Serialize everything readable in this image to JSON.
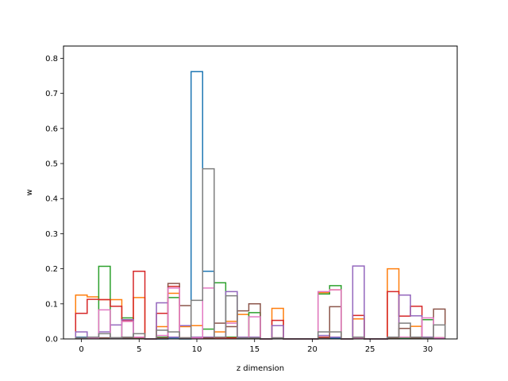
{
  "chart_data": {
    "type": "step-histogram",
    "xlabel": "z dimension",
    "ylabel": "w",
    "xlim": [
      -1.55,
      32.55
    ],
    "ylim": [
      0,
      0.835
    ],
    "xticks": [
      0,
      5,
      10,
      15,
      20,
      25,
      30
    ],
    "yticks": [
      0.0,
      0.1,
      0.2,
      0.3,
      0.4,
      0.5,
      0.6,
      0.7,
      0.8
    ],
    "x": [
      0,
      1,
      2,
      3,
      4,
      5,
      6,
      7,
      8,
      9,
      10,
      11,
      12,
      13,
      14,
      15,
      16,
      17,
      18,
      19,
      20,
      21,
      22,
      23,
      24,
      25,
      26,
      27,
      28,
      29,
      30,
      31
    ],
    "series": [
      {
        "color": "#1f77b4",
        "values": [
          0.005,
          0.003,
          0.003,
          0.003,
          0.002,
          0.004,
          0,
          0,
          0.003,
          0,
          0.762,
          0.193,
          0.005,
          0.005,
          0.003,
          0.003,
          0,
          0.002,
          0,
          0,
          0,
          0.003,
          0.002,
          0,
          0.003,
          0,
          0,
          0.003,
          0.003,
          0.002,
          0.002,
          0.002
        ]
      },
      {
        "color": "#ff7f0e",
        "values": [
          0.125,
          0.12,
          0.112,
          0.112,
          0.05,
          0.118,
          0,
          0.035,
          0.13,
          0.035,
          0.038,
          0.005,
          0.02,
          0.05,
          0.07,
          0.005,
          0,
          0.087,
          0,
          0,
          0,
          0.132,
          0.14,
          0,
          0.057,
          0,
          0,
          0.2,
          0.005,
          0.036,
          0.005,
          0.003
        ]
      },
      {
        "color": "#2ca02c",
        "values": [
          0.003,
          0.003,
          0.207,
          0.003,
          0.06,
          0.002,
          0,
          0.005,
          0.118,
          0.003,
          0.003,
          0.028,
          0.16,
          0.005,
          0.005,
          0.075,
          0,
          0.002,
          0,
          0,
          0,
          0.128,
          0.152,
          0,
          0.003,
          0,
          0,
          0.003,
          0.003,
          0.003,
          0.055,
          0.003
        ]
      },
      {
        "color": "#d62728",
        "values": [
          0.073,
          0.113,
          0.112,
          0.093,
          0.052,
          0.193,
          0,
          0.073,
          0.15,
          0.003,
          0.003,
          0.003,
          0.003,
          0.003,
          0.003,
          0.003,
          0,
          0.053,
          0,
          0,
          0,
          0.005,
          0.005,
          0,
          0.067,
          0,
          0,
          0.135,
          0.065,
          0.093,
          0.003,
          0.003
        ]
      },
      {
        "color": "#9467bd",
        "values": [
          0.02,
          0.005,
          0.02,
          0.04,
          0.055,
          0.005,
          0,
          0.103,
          0.005,
          0.038,
          0.005,
          0.005,
          0.005,
          0.135,
          0.005,
          0.005,
          0,
          0.038,
          0,
          0,
          0,
          0.01,
          0.005,
          0,
          0.208,
          0,
          0,
          0.005,
          0.125,
          0.066,
          0.005,
          0.003
        ]
      },
      {
        "color": "#8c564b",
        "values": [
          0.003,
          0.003,
          0.003,
          0.003,
          0.003,
          0.003,
          0,
          0.003,
          0.158,
          0.095,
          0.003,
          0.003,
          0.045,
          0.035,
          0.08,
          0.1,
          0,
          0.003,
          0,
          0,
          0,
          0.003,
          0.092,
          0,
          0.003,
          0,
          0,
          0.003,
          0.03,
          0.003,
          0.003,
          0.085
        ]
      },
      {
        "color": "#e377c2",
        "values": [
          0.003,
          0.003,
          0.083,
          0.003,
          0.05,
          0.005,
          0,
          0.01,
          0.145,
          0.003,
          0.003,
          0.145,
          0.005,
          0.045,
          0.003,
          0.063,
          0,
          0.003,
          0,
          0,
          0,
          0.135,
          0.14,
          0,
          0.003,
          0,
          0,
          0.005,
          0.005,
          0.005,
          0.06,
          0.003
        ]
      },
      {
        "color": "#7f7f7f",
        "values": [
          0.003,
          0.005,
          0.015,
          0.003,
          0.005,
          0.015,
          0,
          0.025,
          0.02,
          0.003,
          0.11,
          0.485,
          0.005,
          0.123,
          0.003,
          0.003,
          0,
          0.003,
          0,
          0,
          0,
          0.02,
          0.02,
          0,
          0.005,
          0,
          0,
          0.005,
          0.045,
          0.005,
          0.003,
          0.04
        ]
      }
    ]
  }
}
